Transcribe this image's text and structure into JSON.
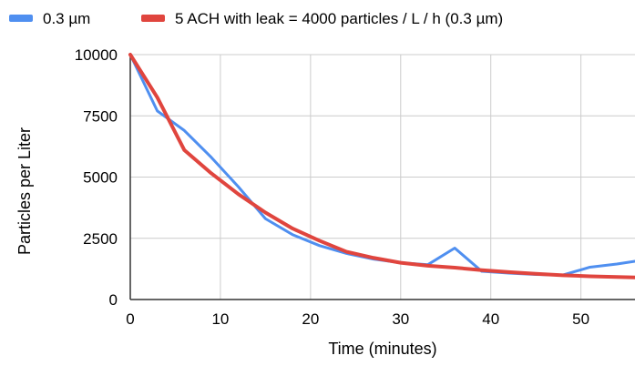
{
  "chart_data": {
    "type": "line",
    "xlabel": "Time (minutes)",
    "ylabel": "Particles per Liter",
    "xlim": [
      0,
      56
    ],
    "ylim": [
      0,
      10000
    ],
    "x_ticks": [
      0,
      10,
      20,
      30,
      40,
      50
    ],
    "y_ticks": [
      0,
      2500,
      5000,
      7500,
      10000
    ],
    "grid": true,
    "legend_position": "top",
    "series": [
      {
        "name": "0.3 µm",
        "color": "#4f8ff0",
        "x": [
          0,
          3,
          6,
          9,
          12,
          15,
          18,
          21,
          24,
          27,
          30,
          33,
          36,
          39,
          42,
          45,
          48,
          51,
          54,
          56
        ],
        "y": [
          10000,
          7700,
          6900,
          5800,
          4600,
          3300,
          2650,
          2200,
          1880,
          1650,
          1500,
          1420,
          2100,
          1150,
          1080,
          1020,
          1000,
          1320,
          1450,
          1560
        ]
      },
      {
        "name": "5 ACH with leak = 4000 particles / L / h (0.3 µm)",
        "color": "#e0453e",
        "x": [
          0,
          3,
          6,
          9,
          12,
          15,
          18,
          21,
          24,
          27,
          30,
          33,
          36,
          39,
          42,
          45,
          48,
          51,
          54,
          56
        ],
        "y": [
          10000,
          8250,
          6100,
          5150,
          4300,
          3550,
          2900,
          2400,
          1950,
          1700,
          1500,
          1380,
          1300,
          1200,
          1120,
          1050,
          990,
          950,
          920,
          900
        ]
      }
    ]
  }
}
